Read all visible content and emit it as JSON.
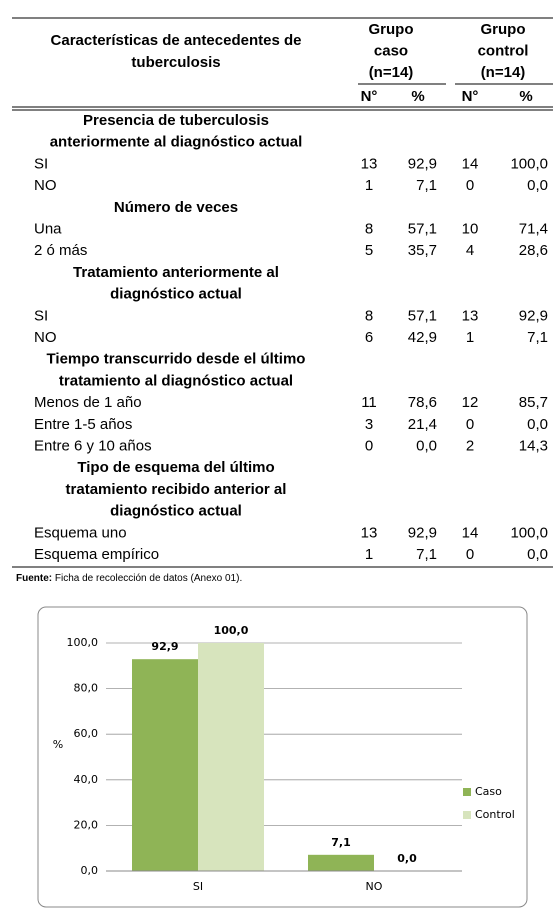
{
  "table": {
    "header": {
      "characteristic": {
        "lines": [
          "Características de antecedentes de",
          "tuberculosis"
        ]
      },
      "groups": [
        {
          "lines": [
            "Grupo",
            "caso",
            "(n=14)"
          ],
          "columns": [
            "N°",
            "%"
          ]
        },
        {
          "lines": [
            "Grupo",
            "control",
            "(n=14)"
          ],
          "columns": [
            "N°",
            "%"
          ]
        }
      ]
    },
    "rows": [
      {
        "section": [
          "Presencia de tuberculosis",
          "anteriormente al diagnóstico actual"
        ]
      },
      {
        "label": "SI",
        "values": [
          "13",
          "92,9",
          "14",
          "100,0"
        ]
      },
      {
        "label": "NO",
        "values": [
          "1",
          "7,1",
          "0",
          "0,0"
        ]
      },
      {
        "section": [
          "Número de veces"
        ]
      },
      {
        "label": "Una",
        "values": [
          "8",
          "57,1",
          "10",
          "71,4"
        ]
      },
      {
        "label": "2 ó más",
        "values": [
          "5",
          "35,7",
          "4",
          "28,6"
        ]
      },
      {
        "section": [
          "Tratamiento anteriormente al",
          "diagnóstico actual"
        ]
      },
      {
        "label": "SI",
        "values": [
          "8",
          "57,1",
          "13",
          "92,9"
        ]
      },
      {
        "label": "NO",
        "values": [
          "6",
          "42,9",
          "1",
          "7,1"
        ]
      },
      {
        "section": [
          "Tiempo transcurrido desde el último",
          "tratamiento al diagnóstico actual"
        ]
      },
      {
        "label": "Menos de 1 año",
        "values": [
          "11",
          "78,6",
          "12",
          "85,7"
        ]
      },
      {
        "label": "Entre 1-5 años",
        "values": [
          "3",
          "21,4",
          "0",
          "0,0"
        ]
      },
      {
        "label": "Entre 6 y 10 años",
        "values": [
          "0",
          "0,0",
          "2",
          "14,3"
        ]
      },
      {
        "section": [
          "Tipo de esquema del último",
          "tratamiento recibido anterior al",
          "diagnóstico actual"
        ]
      },
      {
        "label": "Esquema uno",
        "values": [
          "13",
          "92,9",
          "14",
          "100,0"
        ]
      },
      {
        "label": "Esquema empírico",
        "values": [
          "1",
          "7,1",
          "0",
          "0,0"
        ]
      }
    ],
    "footer": {
      "label": "Fuente:",
      "text": "Ficha de recolección de datos (Anexo 01)."
    }
  },
  "chart_data": {
    "type": "bar",
    "ylabel": "%",
    "categories": [
      "SI",
      "NO"
    ],
    "series": [
      {
        "name": "Caso",
        "color": "#8fb456",
        "values": [
          92.9,
          7.1
        ],
        "value_labels": [
          "92,9",
          "7,1"
        ]
      },
      {
        "name": "Control",
        "color": "#d7e4bd",
        "values": [
          100,
          0
        ],
        "value_labels": [
          "100,0",
          "0,0"
        ]
      }
    ],
    "ylim": [
      0,
      100
    ],
    "yticks": [
      {
        "value": 0,
        "label": "0,0"
      },
      {
        "value": 20,
        "label": "20,0"
      },
      {
        "value": 40,
        "label": "40,0"
      },
      {
        "value": 60,
        "label": "60,0"
      },
      {
        "value": 80,
        "label": "80,0"
      },
      {
        "value": 100,
        "label": "100,0"
      }
    ],
    "grid": true,
    "legend": "right"
  }
}
